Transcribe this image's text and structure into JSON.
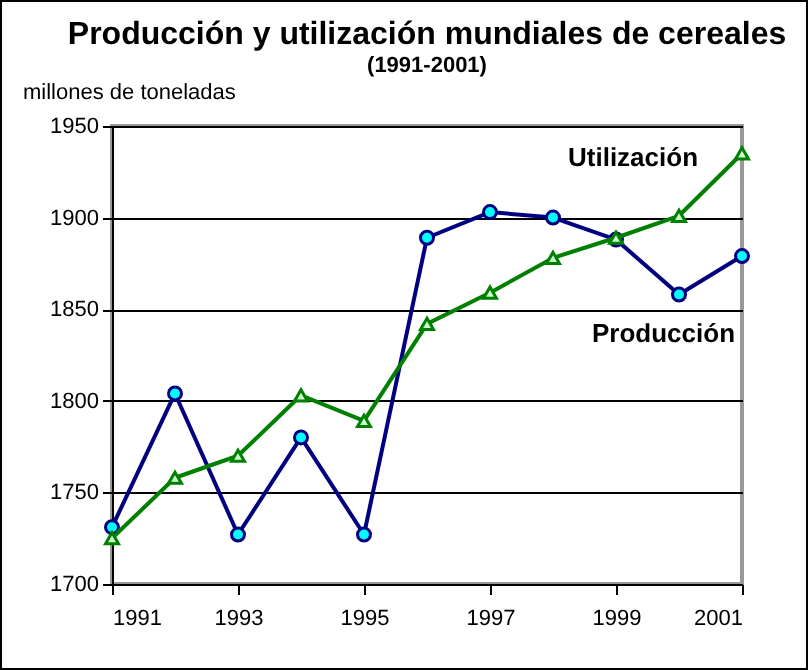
{
  "chart_data": {
    "type": "line",
    "title": "Producción y utilización mundiales de cereales",
    "subtitle": "(1991-2001)",
    "ylabel": "millones de toneladas",
    "x": [
      1991,
      1992,
      1993,
      1994,
      1995,
      1996,
      1997,
      1998,
      1999,
      2000,
      2001
    ],
    "series": [
      {
        "name": "Producción",
        "color": "#000080",
        "marker": "circle",
        "values": [
          1731,
          1804,
          1727,
          1780,
          1727,
          1889,
          1903,
          1900,
          1888,
          1858,
          1879
        ]
      },
      {
        "name": "Utilización",
        "color": "#008000",
        "marker": "triangle",
        "values": [
          1725,
          1758,
          1770,
          1803,
          1789,
          1842,
          1859,
          1878,
          1889,
          1901,
          1935
        ]
      }
    ],
    "xlim": [
      1991,
      2001
    ],
    "xticks": [
      1991,
      1993,
      1995,
      1997,
      1999,
      2001
    ],
    "ylim": [
      1700,
      1950
    ],
    "yticks": [
      1700,
      1750,
      1800,
      1850,
      1900,
      1950
    ],
    "grid": "y",
    "legend": false
  }
}
